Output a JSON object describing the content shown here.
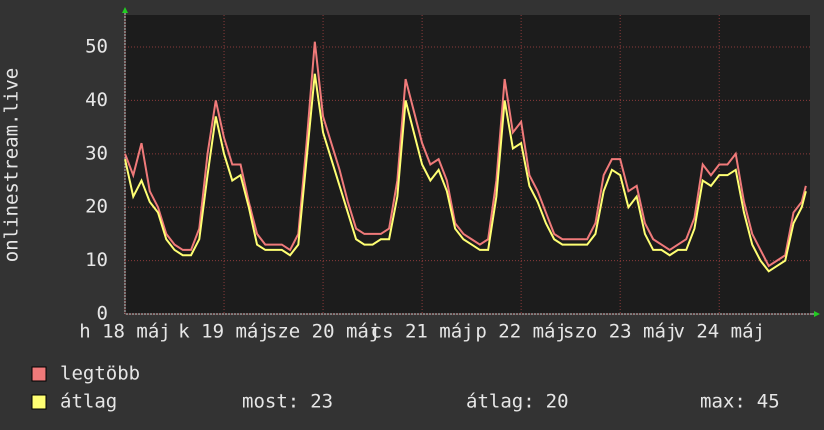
{
  "chart_data": {
    "type": "line",
    "y_label": "onlinestream.live",
    "x": [
      0,
      2,
      4,
      6,
      8,
      10,
      12,
      14,
      16,
      18,
      20,
      22,
      24,
      26,
      28,
      30,
      32,
      34,
      36,
      38,
      40,
      42,
      44,
      46,
      48,
      50,
      52,
      54,
      56,
      58,
      60,
      62,
      64,
      66,
      68,
      70,
      72,
      74,
      76,
      78,
      80,
      82,
      84,
      86,
      88,
      90,
      92,
      94,
      96,
      98,
      100,
      102,
      104,
      106,
      108,
      110,
      112,
      114,
      116,
      118,
      120,
      122,
      124,
      126,
      128,
      130,
      132,
      134,
      136,
      138,
      140,
      142,
      144,
      146,
      148,
      150,
      152,
      154,
      156,
      158,
      160,
      162,
      164,
      165
    ],
    "xlim": [
      0,
      166
    ],
    "xticks": [
      {
        "value": 0,
        "label": "h 18 máj"
      },
      {
        "value": 24,
        "label": "k 19 máj"
      },
      {
        "value": 48,
        "label": "sze 20 máj"
      },
      {
        "value": 72,
        "label": "cs 21 máj"
      },
      {
        "value": 96,
        "label": "p 22 máj"
      },
      {
        "value": 120,
        "label": "szo 23 máj"
      },
      {
        "value": 144,
        "label": "v 24 máj"
      }
    ],
    "ylim": [
      0,
      56
    ],
    "yticks": [
      0,
      10,
      20,
      30,
      40,
      50
    ],
    "grid": true,
    "series": [
      {
        "name": "legtöbb",
        "color": "#f07a7a",
        "values": [
          30,
          26,
          32,
          23,
          20,
          15,
          13,
          12,
          12,
          16,
          30,
          40,
          33,
          28,
          28,
          21,
          15,
          13,
          13,
          13,
          12,
          15,
          32,
          51,
          37,
          32,
          27,
          21,
          16,
          15,
          15,
          15,
          16,
          25,
          44,
          38,
          32,
          28,
          29,
          25,
          17,
          15,
          14,
          13,
          14,
          25,
          44,
          34,
          36,
          26,
          23,
          19,
          15,
          14,
          14,
          14,
          14,
          17,
          26,
          29,
          29,
          23,
          24,
          17,
          14,
          13,
          12,
          13,
          14,
          18,
          28,
          26,
          28,
          28,
          30,
          21,
          15,
          12,
          9,
          10,
          11,
          19,
          21,
          24
        ]
      },
      {
        "name": "átlag",
        "color": "#ffff73",
        "values": [
          29,
          22,
          25,
          21,
          19,
          14,
          12,
          11,
          11,
          14,
          26,
          37,
          30,
          25,
          26,
          20,
          13,
          12,
          12,
          12,
          11,
          13,
          29,
          45,
          34,
          29,
          24,
          19,
          14,
          13,
          13,
          14,
          14,
          22,
          40,
          34,
          28,
          25,
          27,
          23,
          16,
          14,
          13,
          12,
          12,
          22,
          40,
          31,
          32,
          24,
          21,
          17,
          14,
          13,
          13,
          13,
          13,
          15,
          23,
          27,
          26,
          20,
          22,
          15,
          12,
          12,
          11,
          12,
          12,
          16,
          25,
          24,
          26,
          26,
          27,
          19,
          13,
          10,
          8,
          9,
          10,
          17,
          20,
          23
        ]
      }
    ],
    "stats": [
      {
        "label": "most:",
        "value": 23
      },
      {
        "label": "átlag:",
        "value": 20
      },
      {
        "label": "max:",
        "value": 45
      }
    ]
  }
}
